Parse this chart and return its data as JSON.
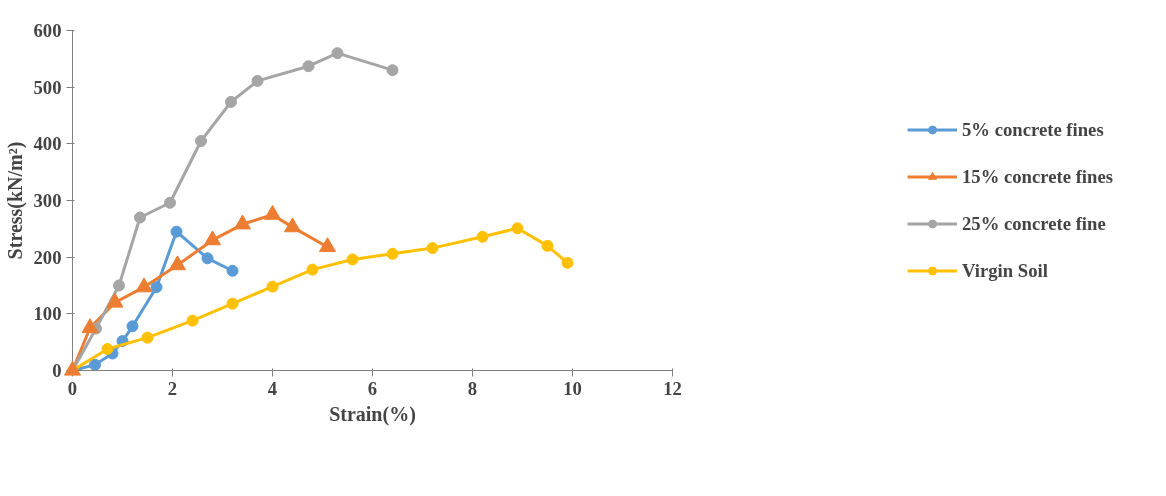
{
  "chart_data": {
    "type": "line",
    "xlabel": "Strain(%)",
    "ylabel": "Stress(kN/m²)",
    "xlim": [
      0,
      12
    ],
    "xticks": [
      0,
      2,
      4,
      6,
      8,
      10,
      12
    ],
    "ylim": [
      0,
      600
    ],
    "yticks": [
      0,
      100,
      200,
      300,
      400,
      500,
      600
    ],
    "grid": false,
    "legend": "right",
    "line_style": "solid",
    "series": [
      {
        "name": "5% concrete fines",
        "color": "#5b9bd5",
        "marker": "circle",
        "x": [
          0,
          0.45,
          0.8,
          1.0,
          1.2,
          1.68,
          2.08,
          2.7,
          3.2
        ],
        "values": [
          0,
          10,
          30,
          52,
          78,
          147,
          245,
          198,
          176
        ]
      },
      {
        "name": "15% concrete fines",
        "color": "#ed7d31",
        "marker": "triangle",
        "x": [
          0,
          0.35,
          0.85,
          1.43,
          2.1,
          2.8,
          3.4,
          4.0,
          4.4,
          5.1
        ],
        "values": [
          0,
          75,
          120,
          147,
          186,
          230,
          258,
          275,
          253,
          218
        ]
      },
      {
        "name": "25% concrete fine",
        "color": "#a5a5a5",
        "marker": "circle",
        "x": [
          0,
          0.47,
          0.93,
          1.35,
          1.95,
          2.57,
          3.17,
          3.7,
          4.72,
          5.3,
          6.4
        ],
        "values": [
          0,
          74,
          150,
          270,
          296,
          405,
          474,
          511,
          537,
          560,
          530
        ]
      },
      {
        "name": "Virgin Soil",
        "color": "#ffc000",
        "marker": "circle",
        "x": [
          0,
          0.7,
          1.5,
          2.4,
          3.2,
          4.0,
          4.8,
          5.6,
          6.4,
          7.2,
          8.2,
          8.9,
          9.5,
          9.9
        ],
        "values": [
          0,
          38,
          58,
          88,
          118,
          148,
          178,
          196,
          206,
          216,
          236,
          251,
          220,
          190
        ]
      }
    ]
  }
}
